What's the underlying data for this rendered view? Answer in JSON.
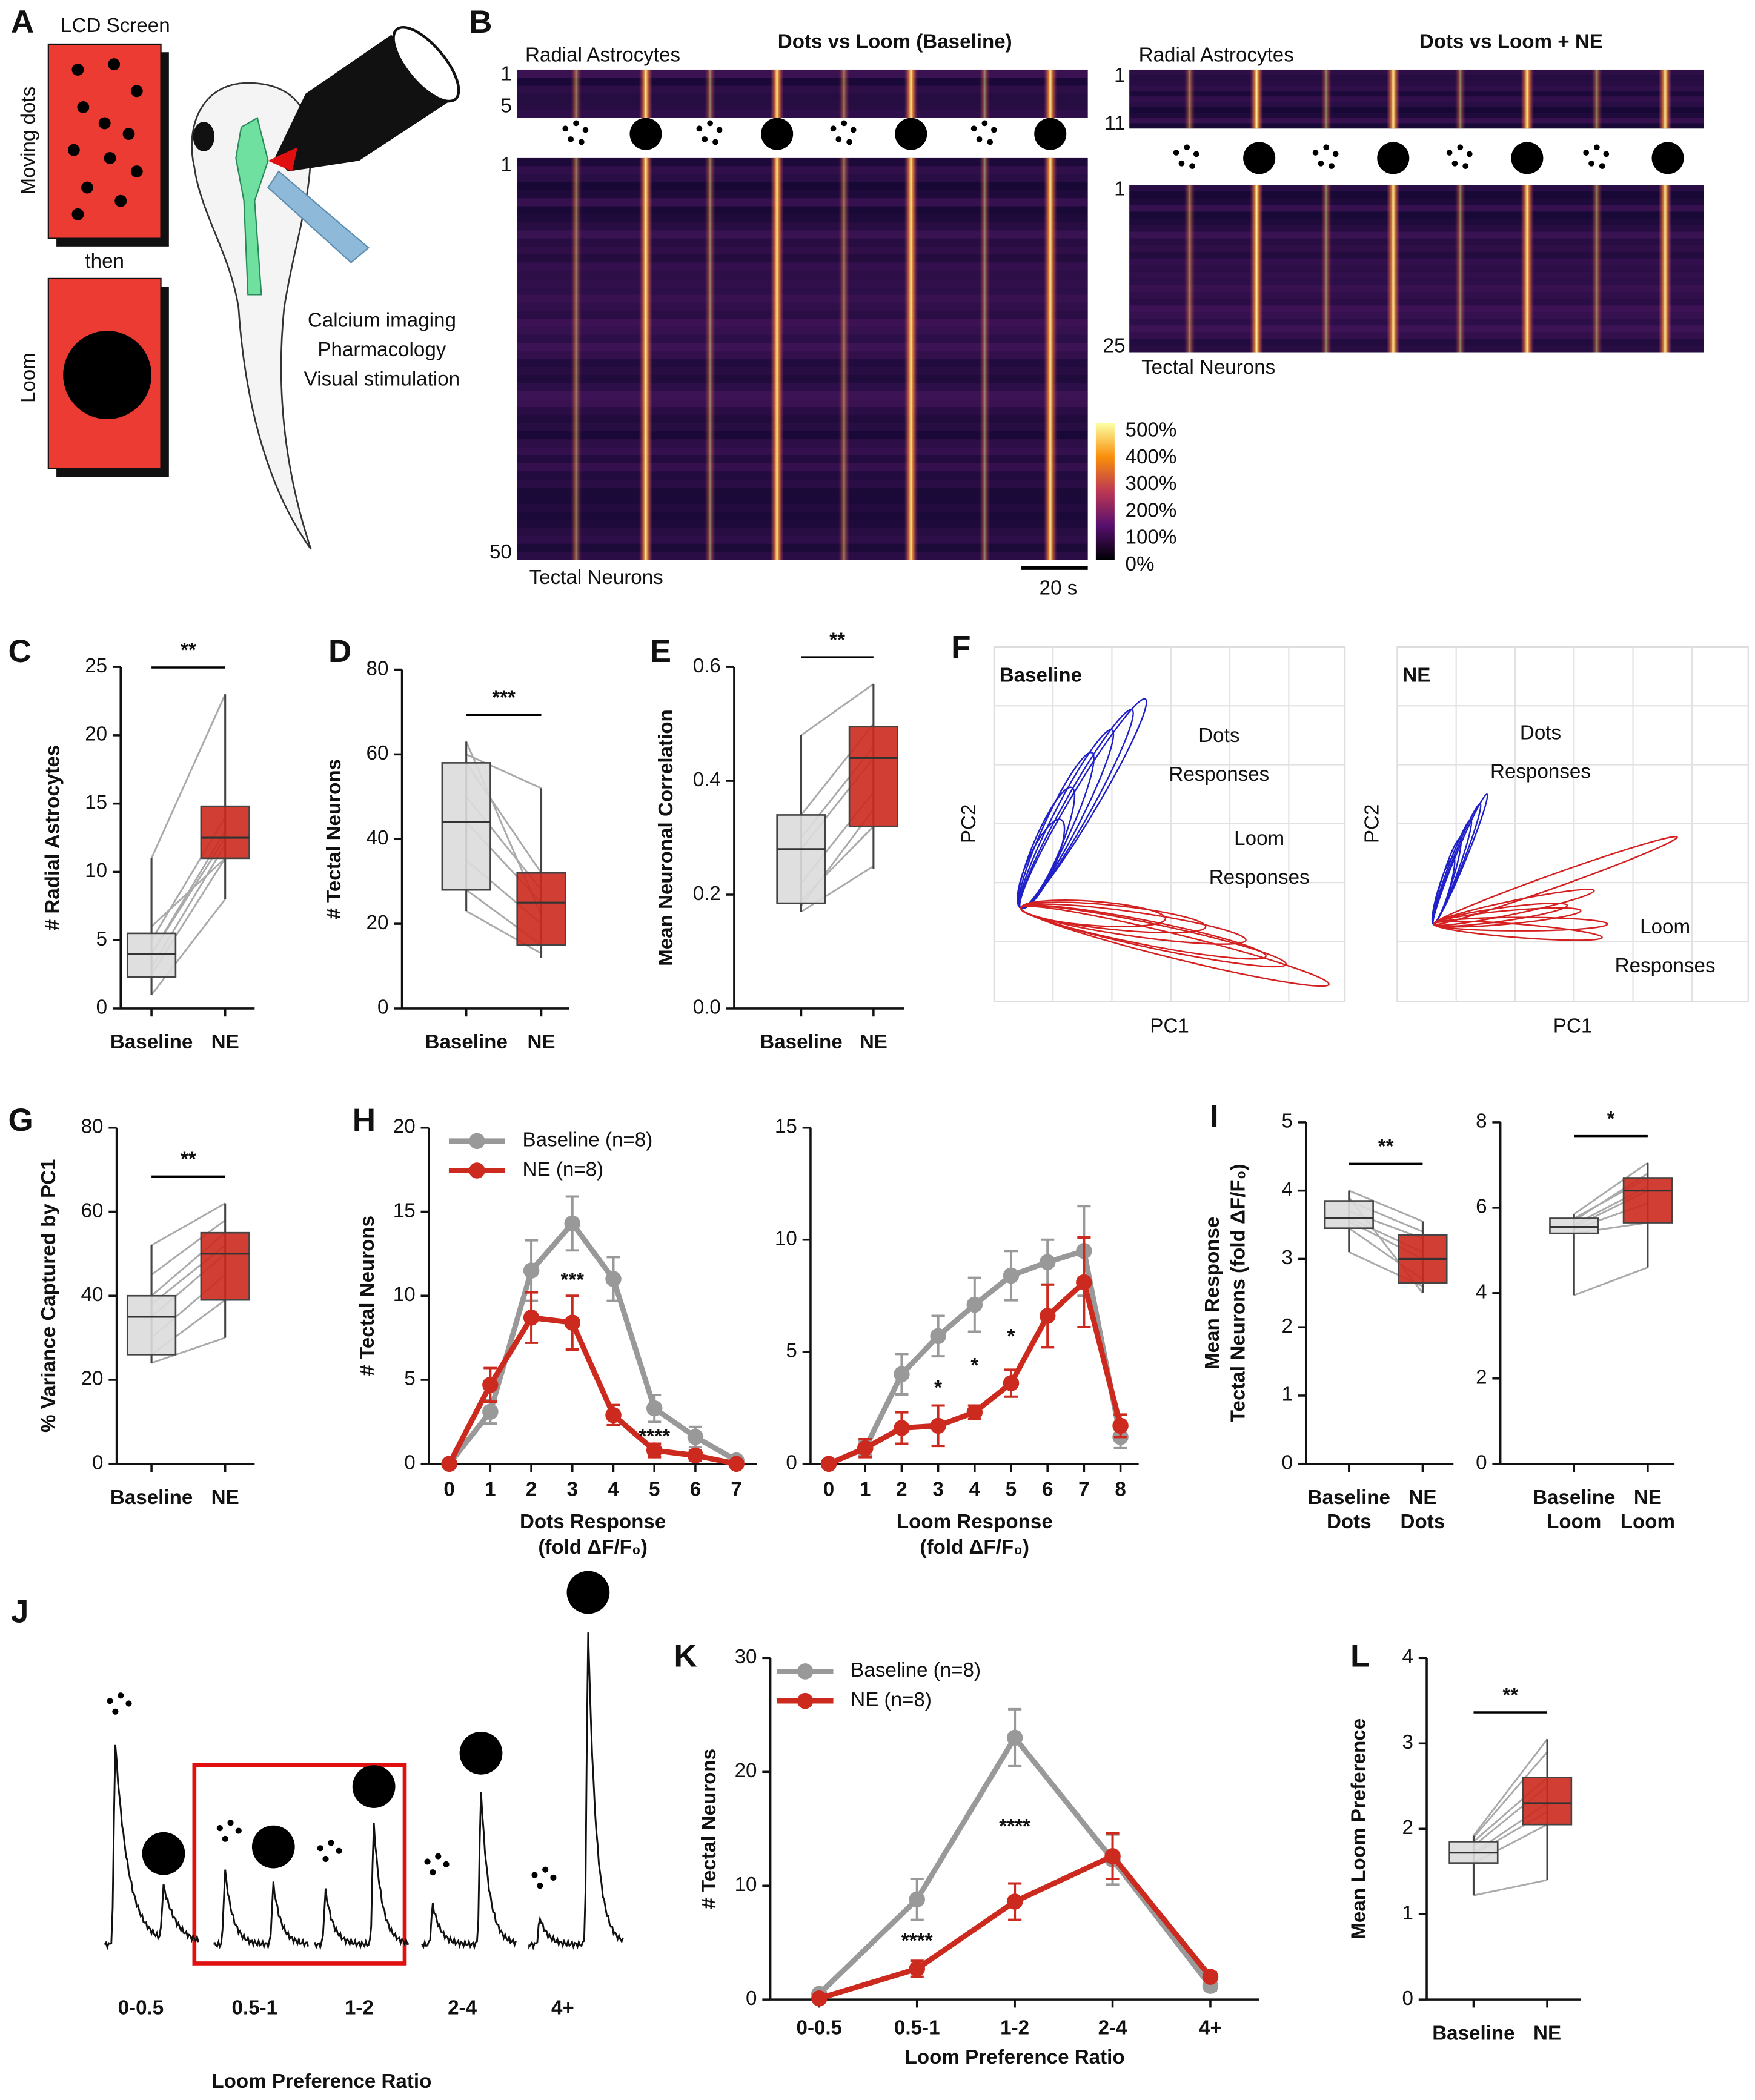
{
  "figure": {
    "panel_A": {
      "label": "A",
      "screen_label": "LCD Screen",
      "dots_label": "Moving dots",
      "then": "then",
      "loom_label": "Loom",
      "methods": [
        "Calcium imaging",
        "Pharmacology",
        "Visual stimulation"
      ]
    },
    "panel_B": {
      "label": "B",
      "baseline": {
        "title": "Dots vs Loom (Baseline)",
        "astro_label": "Radial Astrocytes",
        "astro_range": [
          1,
          5
        ],
        "neuron_range": [
          1,
          50
        ],
        "neuron_label": "Tectal Neurons"
      },
      "ne": {
        "title": "Dots vs Loom + NE",
        "astro_label": "Radial Astrocytes",
        "astro_range": [
          1,
          11
        ],
        "neuron_range": [
          1,
          25
        ],
        "neuron_label": "Tectal Neurons"
      },
      "colorbar": [
        "500%",
        "400%",
        "300%",
        "200%",
        "100%",
        "0%"
      ],
      "scale_bar": "20 s"
    },
    "panel_F": {
      "label": "F",
      "baseline": {
        "title": "Baseline",
        "dots": [
          "Dots",
          "Responses"
        ],
        "loom": [
          "Loom",
          "Responses"
        ],
        "xlabel": "PC1",
        "ylabel": "PC2"
      },
      "ne": {
        "title": "NE",
        "dots": [
          "Dots",
          "Responses"
        ],
        "loom": [
          "Loom",
          "Responses"
        ],
        "xlabel": "PC1",
        "ylabel": "PC2"
      }
    },
    "panel_J": {
      "label": "J",
      "ratios": [
        "0-0.5",
        "0.5-1",
        "1-2",
        "2-4",
        "4+"
      ],
      "xlabel": "Loom Preference Ratio"
    }
  },
  "chart_data": [
    {
      "type": "box",
      "panel": "C",
      "ylabel": "# Radial Astrocytes",
      "categories": [
        "Baseline",
        "NE"
      ],
      "ylim": [
        0,
        25
      ],
      "yticks": [
        0,
        5,
        10,
        15,
        20,
        25
      ],
      "significance": "**",
      "boxes": [
        {
          "min": 1,
          "q1": 2.3,
          "median": 4,
          "q3": 5.5,
          "max": 11,
          "color": "#dcdcdc"
        },
        {
          "min": 8,
          "q1": 11,
          "median": 12.5,
          "q3": 14.8,
          "max": 23,
          "color": "#cc2a1e"
        }
      ],
      "pairs": [
        [
          1,
          8
        ],
        [
          2.5,
          11
        ],
        [
          3,
          12
        ],
        [
          4,
          13
        ],
        [
          4,
          12.5
        ],
        [
          5,
          14
        ],
        [
          6,
          11
        ],
        [
          11,
          23
        ]
      ]
    },
    {
      "type": "box",
      "panel": "D",
      "ylabel": "# Tectal Neurons",
      "categories": [
        "Baseline",
        "NE"
      ],
      "ylim": [
        0,
        80
      ],
      "yticks": [
        0,
        20,
        40,
        60,
        80
      ],
      "significance": "***",
      "boxes": [
        {
          "min": 23,
          "q1": 28,
          "median": 44,
          "q3": 58,
          "max": 63,
          "color": "#dcdcdc"
        },
        {
          "min": 12,
          "q1": 15,
          "median": 25,
          "q3": 32,
          "max": 52,
          "color": "#cc2a1e"
        }
      ],
      "pairs": [
        [
          23,
          13
        ],
        [
          28,
          15
        ],
        [
          35,
          20
        ],
        [
          44,
          25
        ],
        [
          50,
          28
        ],
        [
          58,
          32
        ],
        [
          60,
          52
        ],
        [
          63,
          22
        ]
      ]
    },
    {
      "type": "box",
      "panel": "E",
      "ylabel": "Mean Neuronal Correlation",
      "categories": [
        "Baseline",
        "NE"
      ],
      "ylim": [
        0,
        0.6
      ],
      "yticks": [
        {
          "value": 0,
          "label": "0.0"
        },
        0.2,
        0.4,
        0.6
      ],
      "significance": "**",
      "boxes": [
        {
          "min": 0.17,
          "q1": 0.185,
          "median": 0.28,
          "q3": 0.34,
          "max": 0.48,
          "color": "#dcdcdc"
        },
        {
          "min": 0.245,
          "q1": 0.32,
          "median": 0.44,
          "q3": 0.495,
          "max": 0.57,
          "color": "#cc2a1e"
        }
      ],
      "pairs": [
        [
          0.17,
          0.25
        ],
        [
          0.19,
          0.32
        ],
        [
          0.22,
          0.38
        ],
        [
          0.28,
          0.44
        ],
        [
          0.3,
          0.46
        ],
        [
          0.34,
          0.5
        ],
        [
          0.48,
          0.57
        ],
        [
          0.18,
          0.35
        ]
      ]
    },
    {
      "type": "box",
      "panel": "G",
      "ylabel": "% Variance Captured by PC1",
      "categories": [
        "Baseline",
        "NE"
      ],
      "ylim": [
        0,
        80
      ],
      "yticks": [
        0,
        20,
        40,
        60,
        80
      ],
      "significance": "**",
      "boxes": [
        {
          "min": 24,
          "q1": 26,
          "median": 35,
          "q3": 40,
          "max": 52,
          "color": "#dcdcdc"
        },
        {
          "min": 30,
          "q1": 39,
          "median": 50,
          "q3": 55,
          "max": 62,
          "color": "#cc2a1e"
        }
      ],
      "pairs": [
        [
          24,
          30
        ],
        [
          26,
          39
        ],
        [
          30,
          45
        ],
        [
          35,
          50
        ],
        [
          38,
          52
        ],
        [
          40,
          55
        ],
        [
          45,
          58
        ],
        [
          52,
          62
        ]
      ]
    },
    {
      "type": "line",
      "panel": "H",
      "ylabel": "# Tectal Neurons",
      "xlabel": [
        "Dots Response",
        "(fold ΔF/F₀)"
      ],
      "x": [
        0,
        1,
        2,
        3,
        4,
        5,
        6,
        7
      ],
      "xlim": [
        -0.5,
        7.5
      ],
      "xticks": [
        0,
        1,
        2,
        3,
        4,
        5,
        6,
        7
      ],
      "ylim": [
        0,
        20
      ],
      "yticks": [
        0,
        5,
        10,
        15,
        20
      ],
      "legend": "upper left",
      "series": [
        {
          "name": "Baseline (n=8)",
          "color": "#999999",
          "values": [
            0,
            3.1,
            11.5,
            14.3,
            11,
            3.3,
            1.6,
            0.2
          ],
          "errors": [
            0,
            0.7,
            1.8,
            1.6,
            1.3,
            0.8,
            0.6,
            0.2
          ]
        },
        {
          "name": "NE (n=8)",
          "color": "#cc2a1e",
          "values": [
            0,
            4.7,
            8.7,
            8.4,
            2.9,
            0.8,
            0.5,
            0
          ],
          "errors": [
            0,
            1,
            1.5,
            1.6,
            0.6,
            0.4,
            0.3,
            0
          ]
        }
      ],
      "annotations": [
        {
          "text": "***",
          "x": 3
        },
        {
          "text": "****",
          "x": 5
        }
      ]
    },
    {
      "type": "line",
      "xlabel": [
        "Loom Response",
        "(fold ΔF/F₀)"
      ],
      "x": [
        0,
        1,
        2,
        3,
        4,
        5,
        6,
        7,
        8
      ],
      "xlim": [
        -0.5,
        8.5
      ],
      "xticks": [
        0,
        1,
        2,
        3,
        4,
        5,
        6,
        7,
        8
      ],
      "ylim": [
        0,
        15
      ],
      "yticks": [
        0,
        5,
        10,
        15
      ],
      "series": [
        {
          "name": "Baseline (n=8)",
          "color": "#999999",
          "values": [
            0,
            0.7,
            4,
            5.7,
            7.1,
            8.4,
            9,
            9.5,
            1.2
          ],
          "errors": [
            0,
            0.3,
            0.9,
            0.9,
            1.2,
            1.1,
            1,
            2,
            0.5
          ]
        },
        {
          "name": "NE (n=8)",
          "color": "#cc2a1e",
          "values": [
            0,
            0.7,
            1.6,
            1.7,
            2.3,
            3.6,
            6.6,
            8.1,
            1.7
          ],
          "errors": [
            0,
            0.4,
            0.7,
            0.9,
            0.3,
            0.6,
            1.4,
            2,
            0.5
          ]
        }
      ],
      "annotations": [
        {
          "text": "*",
          "x": 3
        },
        {
          "text": "*",
          "x": 4
        },
        {
          "text": "*",
          "x": 5
        }
      ]
    },
    {
      "type": "box",
      "panel": "I",
      "ylabel": [
        "Mean Response",
        "Tectal Neurons (fold ΔF/F₀)"
      ],
      "categories": [
        [
          "Baseline",
          "Dots"
        ],
        [
          "NE",
          "Dots"
        ]
      ],
      "ylim": [
        0,
        5
      ],
      "yticks": [
        0,
        1,
        2,
        3,
        4,
        5
      ],
      "significance": "**",
      "boxes": [
        {
          "min": 3.1,
          "q1": 3.45,
          "median": 3.6,
          "q3": 3.85,
          "max": 4,
          "color": "#dcdcdc"
        },
        {
          "min": 2.5,
          "q1": 2.65,
          "median": 3,
          "q3": 3.35,
          "max": 3.55,
          "color": "#cc2a1e"
        }
      ],
      "pairs": [
        [
          3.1,
          2.6
        ],
        [
          3.45,
          2.7
        ],
        [
          3.55,
          3
        ],
        [
          3.6,
          3.1
        ],
        [
          3.7,
          3.3
        ],
        [
          3.85,
          3.4
        ],
        [
          4,
          3.55
        ],
        [
          3.9,
          2.5
        ]
      ]
    },
    {
      "type": "box",
      "categories": [
        [
          "Baseline",
          "Loom"
        ],
        [
          "NE",
          "Loom"
        ]
      ],
      "ylim": [
        0,
        8
      ],
      "yticks": [
        0,
        2,
        4,
        6,
        8
      ],
      "significance": "*",
      "boxes": [
        {
          "min": 3.95,
          "q1": 5.4,
          "median": 5.55,
          "q3": 5.75,
          "max": 5.85,
          "color": "#dcdcdc"
        },
        {
          "min": 4.6,
          "q1": 5.65,
          "median": 6.4,
          "q3": 6.7,
          "max": 7.05,
          "color": "#cc2a1e"
        }
      ],
      "pairs": [
        [
          3.95,
          4.6
        ],
        [
          5.4,
          5.65
        ],
        [
          5.5,
          6.1
        ],
        [
          5.55,
          6.4
        ],
        [
          5.6,
          6.5
        ],
        [
          5.75,
          6.7
        ],
        [
          5.85,
          7.05
        ],
        [
          5.7,
          6.8
        ]
      ]
    },
    {
      "type": "line",
      "panel": "K",
      "ylabel": "# Tectal Neurons",
      "xlabel": [
        "Loom Preference Ratio"
      ],
      "categories": [
        "0-0.5",
        "0.5-1",
        "1-2",
        "2-4",
        "4+"
      ],
      "ylim": [
        0,
        30
      ],
      "yticks": [
        0,
        10,
        20,
        30
      ],
      "legend": "upper left",
      "series": [
        {
          "name": "Baseline (n=8)",
          "color": "#999999",
          "values": [
            0.5,
            8.8,
            23,
            12.3,
            1.2
          ],
          "errors": [
            0.2,
            1.8,
            2.5,
            2.2,
            0.4
          ]
        },
        {
          "name": "NE (n=8)",
          "color": "#cc2a1e",
          "values": [
            0.1,
            2.7,
            8.6,
            12.6,
            2
          ],
          "errors": [
            0.1,
            0.7,
            1.6,
            2,
            0.4
          ]
        }
      ],
      "annotations": [
        {
          "text": "****",
          "x": "0.5-1"
        },
        {
          "text": "****",
          "x": "1-2"
        }
      ]
    },
    {
      "type": "box",
      "panel": "L",
      "ylabel": "Mean Loom Preference",
      "categories": [
        "Baseline",
        "NE"
      ],
      "ylim": [
        0,
        4
      ],
      "yticks": [
        0,
        1,
        2,
        3,
        4
      ],
      "significance": "**",
      "boxes": [
        {
          "min": 1.22,
          "q1": 1.6,
          "median": 1.72,
          "q3": 1.85,
          "max": 1.92,
          "color": "#dcdcdc"
        },
        {
          "min": 1.4,
          "q1": 2.05,
          "median": 2.3,
          "q3": 2.6,
          "max": 3.05,
          "color": "#cc2a1e"
        }
      ],
      "pairs": [
        [
          1.22,
          1.4
        ],
        [
          1.6,
          2.05
        ],
        [
          1.7,
          2.2
        ],
        [
          1.72,
          2.3
        ],
        [
          1.8,
          2.5
        ],
        [
          1.85,
          2.6
        ],
        [
          1.92,
          3.05
        ],
        [
          1.9,
          2.9
        ]
      ]
    }
  ]
}
